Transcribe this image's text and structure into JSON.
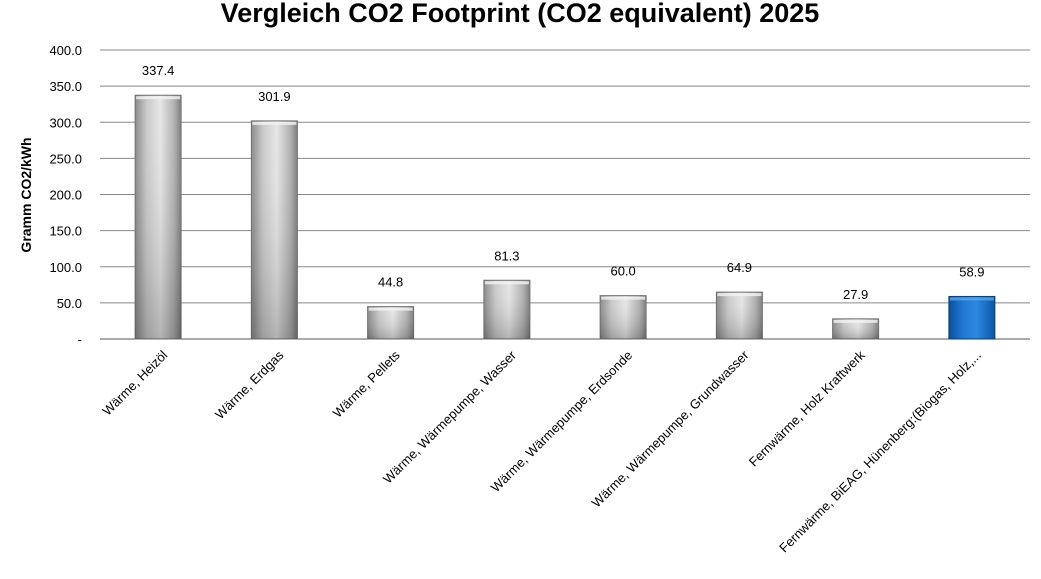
{
  "chart_data": {
    "type": "bar",
    "title": "Vergleich CO2 Footprint (CO2 equivalent) 2025",
    "ylabel": "Gramm CO2/kWh",
    "xlabel": "",
    "ylim": [
      0,
      400
    ],
    "yticks": [
      "-",
      "50.0",
      "100.0",
      "150.0",
      "200.0",
      "250.0",
      "300.0",
      "350.0",
      "400.0"
    ],
    "grid": true,
    "categories": [
      "Wärme, Heizöl",
      "Wärme, Erdgas",
      "Wärme, Pellets",
      "Wärme, Wärmepumpe, Wasser",
      "Wärme, Wärmepumpe, Erdsonde",
      "Wärme, Wärmepumpe, Grundwasser",
      "Fernwärme, Holz Kraftwerk",
      "Fernwärme, BiEAG, Hünenberg:(Biogas, Holz,..."
    ],
    "values": [
      337.4,
      301.9,
      44.8,
      81.3,
      60.0,
      64.9,
      27.9,
      58.9
    ],
    "value_labels": [
      "337.4",
      "301.9",
      "44.8",
      "81.3",
      "60.0",
      "64.9",
      "27.9",
      "58.9"
    ],
    "colors": {
      "default_bar": "#b5b5b5",
      "highlight_bar": "#1f6fc5",
      "gridline": "#888888"
    },
    "highlight_index": 7
  }
}
